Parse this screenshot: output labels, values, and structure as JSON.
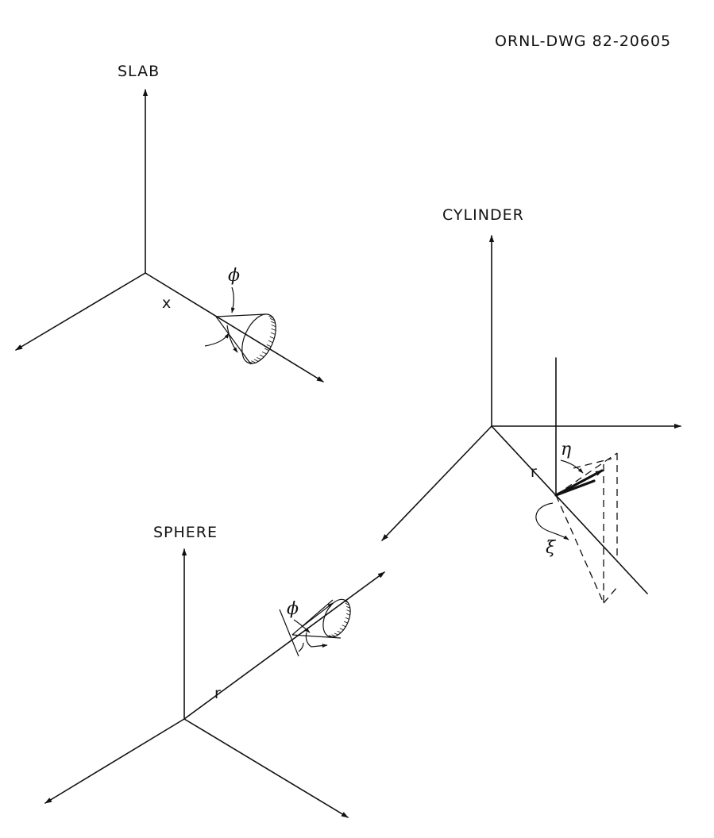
{
  "drawing_id": "ORNL-DWG 82-20605",
  "slab": {
    "title": "SLAB",
    "pos_label": "x",
    "angle_label": "ϕ"
  },
  "cylinder": {
    "title": "CYLINDER",
    "pos_label": "r",
    "angle_eta": "η",
    "angle_xi": "ξ"
  },
  "sphere": {
    "title": "SPHERE",
    "pos_label": "r",
    "angle_label": "ϕ"
  },
  "colors": {
    "ink": "#111111",
    "paper": "#ffffff"
  }
}
